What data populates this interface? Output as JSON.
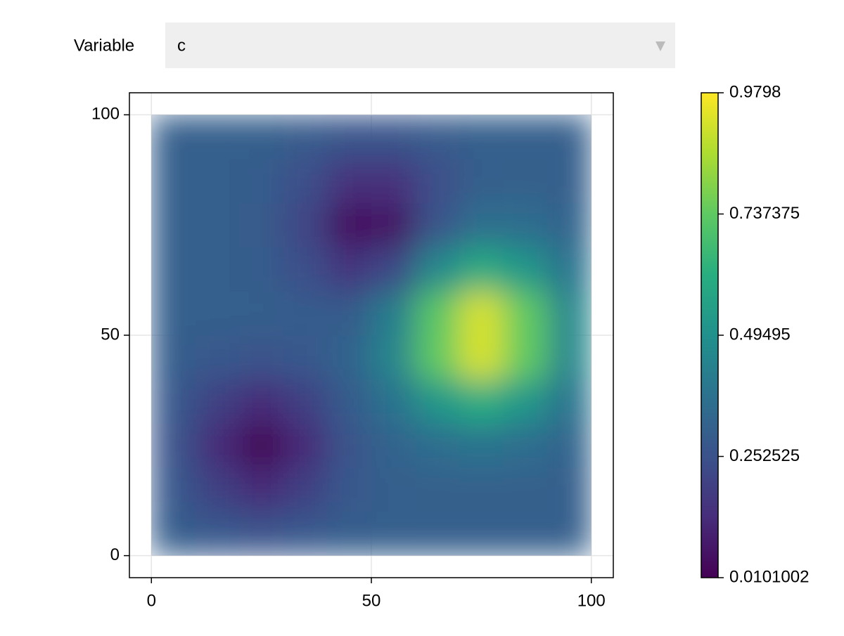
{
  "menu": {
    "label": "Variable",
    "selected": "c"
  },
  "chart_data": {
    "type": "heatmap",
    "colormap": "viridis",
    "grid": true,
    "x": [
      5,
      15,
      25,
      35,
      45,
      55,
      65,
      75,
      85,
      95
    ],
    "y": [
      5,
      15,
      25,
      35,
      45,
      55,
      65,
      75,
      85,
      95
    ],
    "z": [
      [
        0.295,
        0.276,
        0.261,
        0.276,
        0.295,
        0.3,
        0.3,
        0.3,
        0.3,
        0.3
      ],
      [
        0.276,
        0.193,
        0.124,
        0.193,
        0.276,
        0.298,
        0.307,
        0.31,
        0.307,
        0.3
      ],
      [
        0.261,
        0.124,
        0.01,
        0.124,
        0.264,
        0.316,
        0.355,
        0.378,
        0.355,
        0.319
      ],
      [
        0.276,
        0.193,
        0.124,
        0.193,
        0.29,
        0.376,
        0.52,
        0.611,
        0.52,
        0.378
      ],
      [
        0.295,
        0.276,
        0.261,
        0.278,
        0.322,
        0.453,
        0.741,
        0.924,
        0.741,
        0.456
      ],
      [
        0.3,
        0.3,
        0.297,
        0.29,
        0.292,
        0.421,
        0.728,
        0.924,
        0.741,
        0.456
      ],
      [
        0.3,
        0.3,
        0.292,
        0.243,
        0.159,
        0.223,
        0.463,
        0.603,
        0.52,
        0.378
      ],
      [
        0.3,
        0.3,
        0.287,
        0.206,
        0.047,
        0.063,
        0.261,
        0.365,
        0.355,
        0.319
      ],
      [
        0.3,
        0.3,
        0.292,
        0.243,
        0.145,
        0.145,
        0.243,
        0.3,
        0.307,
        0.3
      ],
      [
        0.3,
        0.3,
        0.3,
        0.287,
        0.265,
        0.265,
        0.287,
        0.3,
        0.3,
        0.3
      ]
    ],
    "xlim": [
      -5,
      105
    ],
    "ylim": [
      -5,
      105
    ],
    "xticks": [
      0,
      50,
      100
    ],
    "yticks": [
      0,
      50,
      100
    ],
    "colorbar": {
      "lim": [
        0.0101002,
        0.9798
      ],
      "ticks": [
        0.0101002,
        0.252525,
        0.49495,
        0.737375,
        0.9798
      ]
    }
  }
}
